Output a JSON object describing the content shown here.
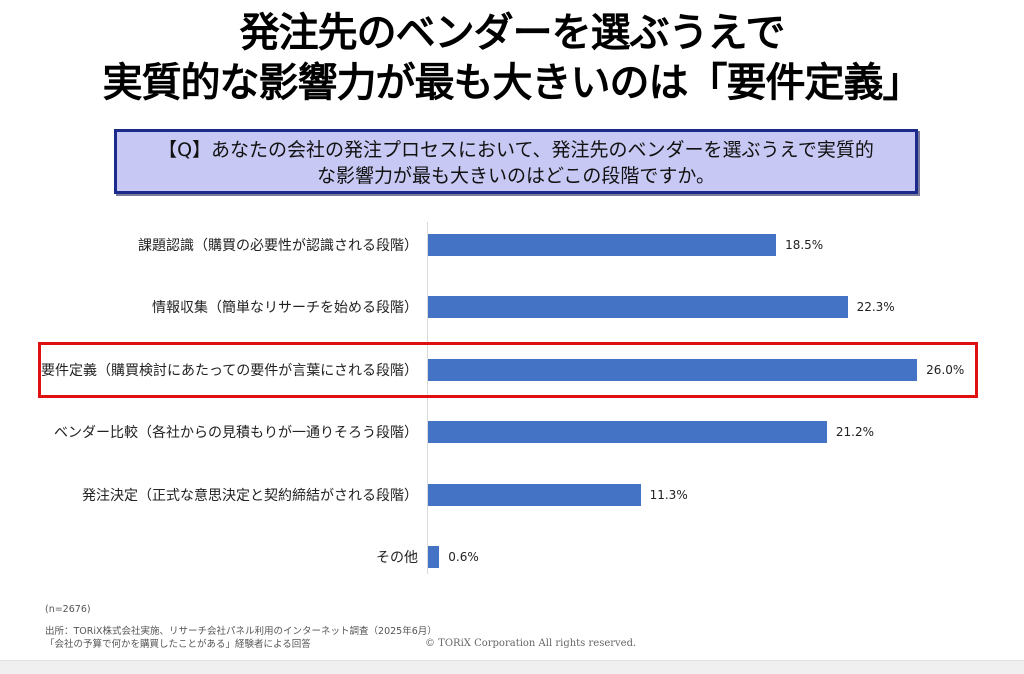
{
  "header": {
    "title_line1": "発注先のベンダーを選ぶうえで",
    "title_line2": "実質的な影響力が最も大きいのは「要件定義」"
  },
  "question": {
    "line1": "【Q】あなたの会社の発注プロセスにおいて、発注先のベンダーを選ぶうえで実質的",
    "line2": "な影響力が最も大きいのはどこの段階ですか。"
  },
  "chart_data": {
    "type": "bar",
    "orientation": "horizontal",
    "title": "発注先のベンダーを選ぶうえで実質的な影響力が最も大きいのは「要件定義」",
    "xlabel": "",
    "ylabel": "",
    "xlim": [
      0,
      27
    ],
    "grid": false,
    "categories": [
      "課題認識（購買の必要性が認識される段階）",
      "情報収集（簡単なリサーチを始める段階）",
      "要件定義（購買検討にあたっての要件が言葉にされる段階）",
      "ベンダー比較（各社からの見積もりが一通りそろう段階）",
      "発注決定（正式な意思決定と契約締結がされる段階）",
      "その他"
    ],
    "values": [
      18.5,
      22.3,
      26.0,
      21.2,
      11.3,
      0.6
    ],
    "value_labels": [
      "18.5%",
      "22.3%",
      "26.0%",
      "21.2%",
      "11.3%",
      "0.6%"
    ],
    "highlighted_category": "要件定義（購買検討にあたっての要件が言葉にされる段階）",
    "bar_color": "#4472c4",
    "highlight_color": "#e01010"
  },
  "footer": {
    "sample_size": "(n=2676)",
    "source": "出所：TORiX株式会社実施、リサーチ会社パネル利用のインターネット調査（2025年6月）",
    "respondents": "「会社の予算で何かを購買したことがある」経験者による回答",
    "copyright": "© TORiX Corporation All rights reserved."
  }
}
